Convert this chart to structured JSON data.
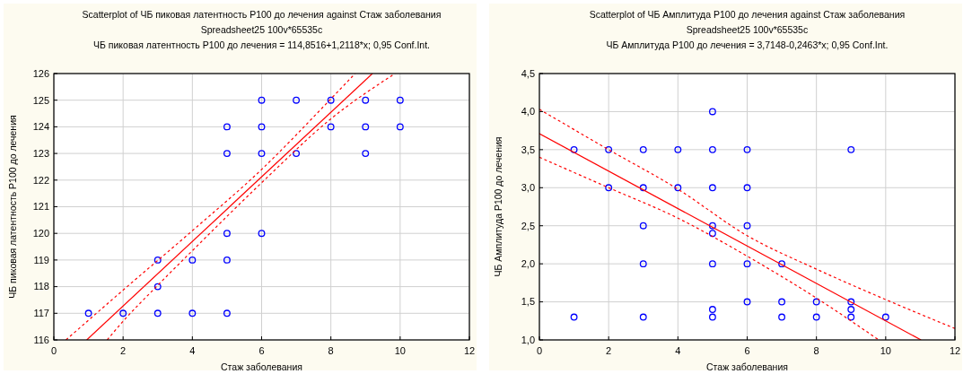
{
  "chart_data": [
    {
      "type": "scatter",
      "title": "Scatterplot of ЧБ пиковая латентность P100 до лечения against Стаж заболевания",
      "subtitle": "Spreadsheet25 100v*65535c",
      "annotations": [
        "ЧБ пиковая латентность P100 до лечения = 114,8516+1,2118*x; 0,95 Conf.Int."
      ],
      "xlabel": "Стаж заболевания",
      "ylabel": "ЧБ пиковая латентность P100 до лечения",
      "xlim": [
        0,
        12
      ],
      "xticks": [
        0,
        2,
        4,
        6,
        8,
        10,
        12
      ],
      "ylim": [
        116,
        126
      ],
      "yticks": [
        116,
        117,
        118,
        119,
        120,
        121,
        122,
        123,
        124,
        125,
        126
      ],
      "grid": true,
      "series": [
        {
          "marker": "circle",
          "color": "#0000ff",
          "x": [
            1,
            2,
            3,
            4,
            5,
            3,
            3,
            4,
            5,
            5,
            6,
            5,
            6,
            7,
            9,
            5,
            6,
            8,
            9,
            10,
            6,
            7,
            8,
            9,
            10
          ],
          "values": [
            117,
            117,
            117,
            117,
            117,
            118,
            119,
            119,
            119,
            120,
            120,
            123,
            123,
            123,
            123,
            124,
            124,
            124,
            124,
            124,
            125,
            125,
            125,
            125,
            125
          ]
        },
        {
          "type": "line",
          "color": "#ff0000",
          "line_style": "solid",
          "x": [
            0.95,
            9.2
          ],
          "values": [
            116.0,
            126.0
          ]
        },
        {
          "type": "line",
          "color": "#ff0000",
          "line_style": "dashed",
          "x": [
            0.35,
            2,
            4,
            6,
            8,
            8.7
          ],
          "values": [
            116,
            117.87,
            120.1,
            122.4,
            125.05,
            126
          ]
        },
        {
          "type": "line",
          "color": "#ff0000",
          "line_style": "dashed",
          "x": [
            1.54,
            2,
            3,
            4,
            6,
            8,
            9.85
          ],
          "values": [
            116,
            116.7,
            118.05,
            119.35,
            121.9,
            124.3,
            126
          ]
        }
      ]
    },
    {
      "type": "scatter",
      "title": "Scatterplot of ЧБ Амплитуда P100 до лечения against Стаж заболевания",
      "subtitle": "Spreadsheet25 100v*65535c",
      "annotations": [
        "ЧБ Амплитуда P100 до лечения = 3,7148-0,2463*x; 0,95 Conf.Int."
      ],
      "xlabel": "Стаж заболевания",
      "ylabel": "ЧБ Амплитуда P100 до лечения",
      "xlim": [
        0,
        12
      ],
      "xticks": [
        0,
        2,
        4,
        6,
        8,
        10,
        12
      ],
      "ylim": [
        1,
        4.5
      ],
      "yticks": [
        {
          "value": 1,
          "label": "1,0"
        },
        {
          "value": 1.5,
          "label": "1,5"
        },
        {
          "value": 2,
          "label": "2,0"
        },
        {
          "value": 2.5,
          "label": "2,5"
        },
        {
          "value": 3,
          "label": "3,0"
        },
        {
          "value": 3.5,
          "label": "3,5"
        },
        {
          "value": 4,
          "label": "4,0"
        },
        {
          "value": 4.5,
          "label": "4,5"
        }
      ],
      "grid": true,
      "series": [
        {
          "marker": "circle",
          "color": "#0000ff",
          "x": [
            1,
            2,
            3,
            4,
            5,
            6,
            9,
            5,
            2,
            3,
            4,
            5,
            6,
            3,
            5,
            6,
            5,
            3,
            5,
            6,
            7,
            6,
            7,
            8,
            9,
            5,
            9,
            1,
            3,
            5,
            7,
            8,
            9,
            10
          ],
          "values": [
            3.5,
            3.5,
            3.5,
            3.5,
            3.5,
            3.5,
            3.5,
            4.0,
            3.0,
            3.0,
            3.0,
            3.0,
            3.0,
            2.5,
            2.5,
            2.5,
            2.4,
            2.0,
            2.0,
            2.0,
            2.0,
            1.5,
            1.5,
            1.5,
            1.5,
            1.4,
            1.4,
            1.3,
            1.3,
            1.3,
            1.3,
            1.3,
            1.3,
            1.3
          ]
        },
        {
          "type": "line",
          "color": "#ff0000",
          "line_style": "solid",
          "x": [
            0,
            11.02
          ],
          "values": [
            3.71,
            1.0
          ]
        },
        {
          "type": "line",
          "color": "#ff0000",
          "line_style": "dashed",
          "x": [
            0,
            2,
            4,
            6,
            8,
            10,
            12
          ],
          "values": [
            4.03,
            3.5,
            2.98,
            2.37,
            1.93,
            1.53,
            1.15
          ]
        },
        {
          "type": "line",
          "color": "#ff0000",
          "line_style": "dashed",
          "x": [
            0,
            2,
            4,
            6,
            8,
            9.8
          ],
          "values": [
            3.4,
            3.0,
            2.6,
            2.1,
            1.55,
            1.0
          ]
        }
      ]
    }
  ]
}
